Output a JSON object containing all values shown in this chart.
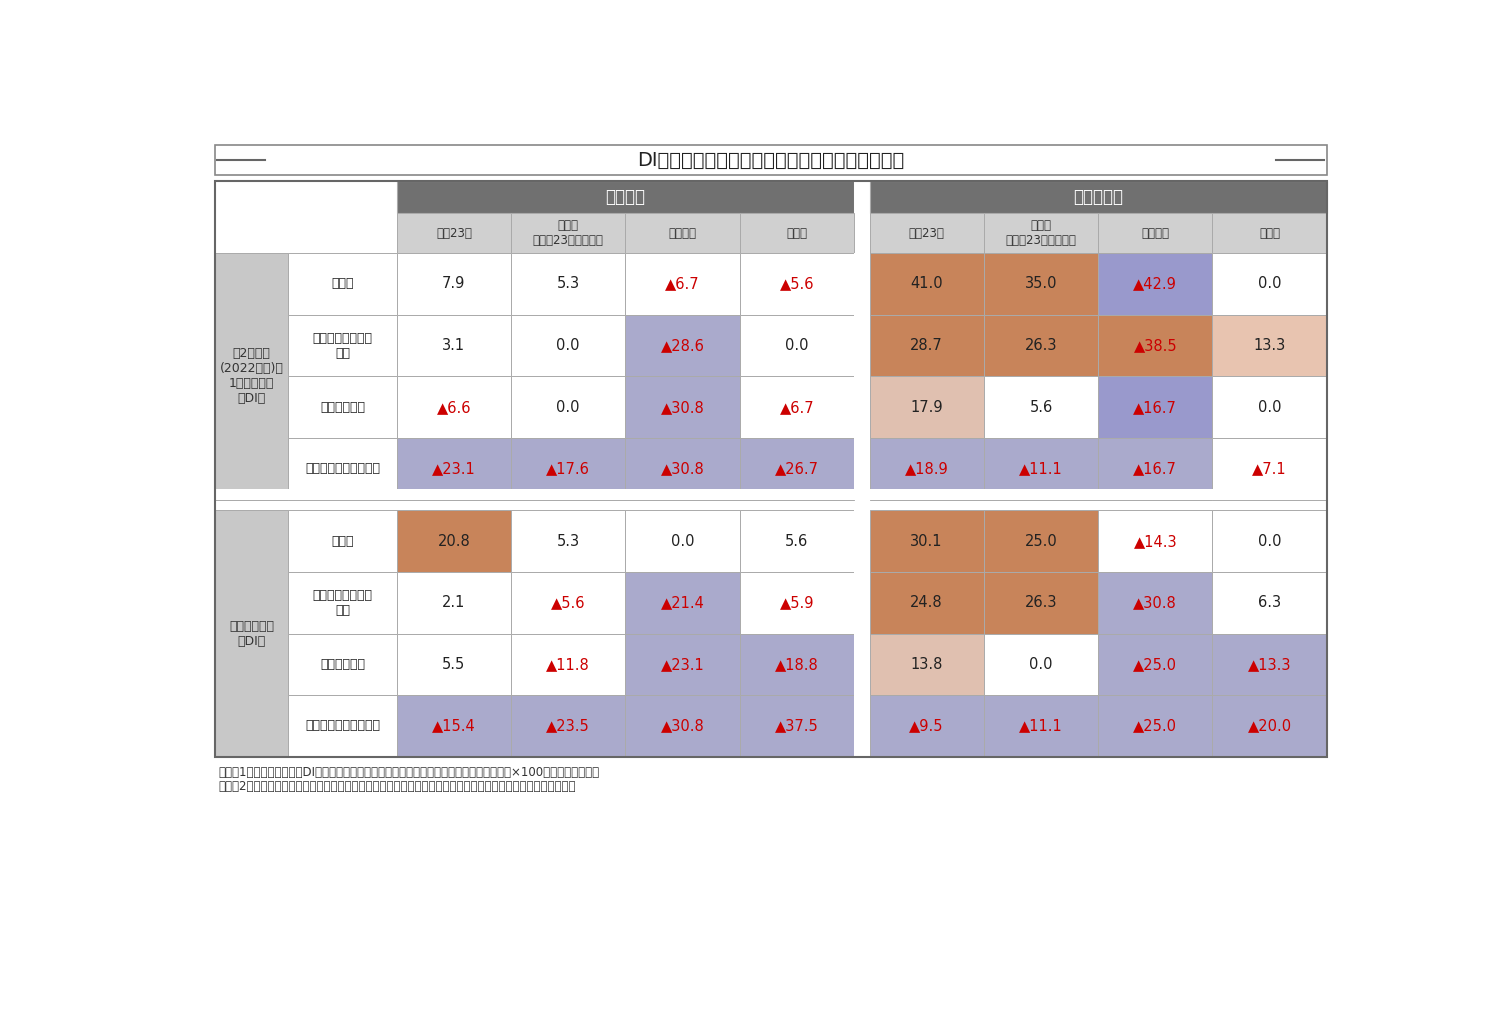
{
  "title": "DI（ポジティブな回答とネガティブな回答の差）",
  "notes": [
    "（注）1．本調査におけるDIは、「（ポジティブな回答の割合－ネガティブな回答の割合）×100」と定義します。",
    "　　　2．「ダウンタイム」とは、前テナントの契約終了から新テナントの契約開始までの空室期間を指します。"
  ],
  "single_label": "シングル",
  "family_label": "ファミリー",
  "col_labels": [
    "東京23区",
    "首都圏\n（東京23区を除く）",
    "名古屋市",
    "大阪市"
  ],
  "row_groups": [
    {
      "label": "第2繁忙期\n(2022年秋)と\n1年前の比較\n（DI）",
      "rows": [
        {
          "label": "稼働率",
          "values": [
            "7.9",
            "5.3",
            "▲6.7",
            "▲5.6",
            "41.0",
            "35.0",
            "▲42.9",
            "0.0"
          ]
        },
        {
          "label": "テナント入替時の\n賃料",
          "values": [
            "3.1",
            "0.0",
            "▲28.6",
            "0.0",
            "28.7",
            "26.3",
            "▲38.5",
            "13.3"
          ]
        },
        {
          "label": "ダウンタイム",
          "values": [
            "▲6.6",
            "0.0",
            "▲30.8",
            "▲6.7",
            "17.9",
            "5.6",
            "▲16.7",
            "0.0"
          ]
        },
        {
          "label": "広告費・フリーレント",
          "values": [
            "▲23.1",
            "▲17.6",
            "▲30.8",
            "▲26.7",
            "▲18.9",
            "▲11.1",
            "▲16.7",
            "▲7.1"
          ]
        }
      ]
    },
    {
      "label": "半年後の予想\n（DI）",
      "rows": [
        {
          "label": "稼働率",
          "values": [
            "20.8",
            "5.3",
            "0.0",
            "5.6",
            "30.1",
            "25.0",
            "▲14.3",
            "0.0"
          ]
        },
        {
          "label": "テナント入替時の\n賃料",
          "values": [
            "2.1",
            "▲5.6",
            "▲21.4",
            "▲5.9",
            "24.8",
            "26.3",
            "▲30.8",
            "6.3"
          ]
        },
        {
          "label": "ダウンタイム",
          "values": [
            "5.5",
            "▲11.8",
            "▲23.1",
            "▲18.8",
            "13.8",
            "0.0",
            "▲25.0",
            "▲13.3"
          ]
        },
        {
          "label": "広告費・フリーレント",
          "values": [
            "▲15.4",
            "▲23.5",
            "▲30.8",
            "▲37.5",
            "▲9.5",
            "▲11.1",
            "▲25.0",
            "▲20.0"
          ]
        }
      ]
    }
  ],
  "cell_bg": {
    "0_0": [
      "white",
      "white",
      "white",
      "white",
      "#c8845a",
      "#c8845a",
      "#9999cc",
      "white"
    ],
    "0_1": [
      "white",
      "white",
      "#aaaacc",
      "white",
      "#c8845a",
      "#c8845a",
      "#c8845a",
      "#e8c4b0"
    ],
    "0_2": [
      "white",
      "white",
      "#aaaacc",
      "white",
      "#e0c0b0",
      "white",
      "#9999cc",
      "white"
    ],
    "0_3": [
      "#aaaacc",
      "#aaaacc",
      "#aaaacc",
      "#aaaacc",
      "#aaaacc",
      "#aaaacc",
      "#aaaacc",
      "white"
    ],
    "1_0": [
      "#c8845a",
      "white",
      "white",
      "white",
      "#c8845a",
      "#c8845a",
      "white",
      "white"
    ],
    "1_1": [
      "white",
      "white",
      "#aaaacc",
      "white",
      "#c8845a",
      "#c8845a",
      "#aaaacc",
      "white"
    ],
    "1_2": [
      "white",
      "white",
      "#aaaacc",
      "#aaaacc",
      "#e0c0b0",
      "white",
      "#aaaacc",
      "#aaaacc"
    ],
    "1_3": [
      "#aaaacc",
      "#aaaacc",
      "#aaaacc",
      "#aaaacc",
      "#aaaacc",
      "#aaaacc",
      "#aaaacc",
      "#aaaacc"
    ]
  },
  "header_bg": "#707070",
  "header_text": "#ffffff",
  "subheader_bg": "#d0d0d0",
  "subheader_text": "#333333",
  "row_group_bg": "#c8c8c8",
  "row_group_text": "#333333",
  "border_color": "#aaaaaa",
  "negative_color": "#cc0000",
  "normal_color": "#222222",
  "title_color": "#222222"
}
